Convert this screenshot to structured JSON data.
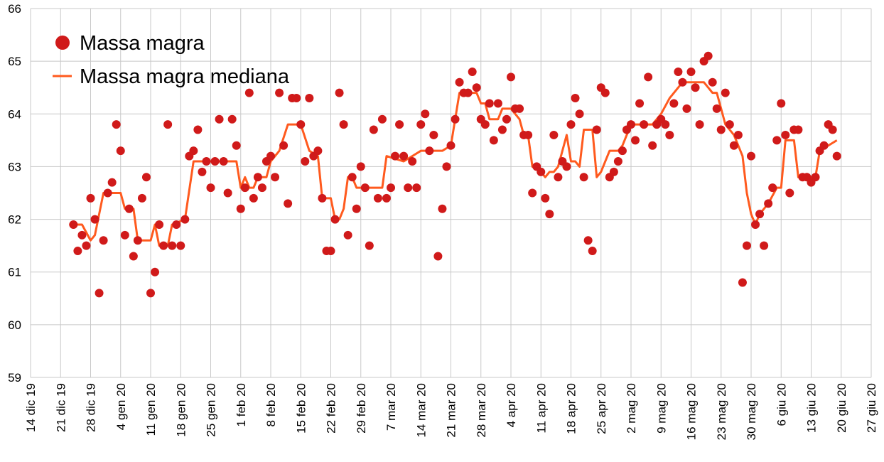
{
  "chart_data": {
    "type": "scatter+line",
    "title": "",
    "xlabel": "",
    "ylabel": "",
    "x_units": "days since 14 dic 19",
    "xlim": [
      0,
      196
    ],
    "ylim": [
      59,
      66
    ],
    "grid": true,
    "legend_placement": "top-left",
    "y_ticks": [
      "59",
      "60",
      "61",
      "62",
      "63",
      "64",
      "65",
      "66"
    ],
    "x_ticks": [
      "14 dic 19",
      "21 dic 19",
      "28 dic 19",
      "4 gen 20",
      "11 gen 20",
      "18 gen 20",
      "25 gen 20",
      "1 feb 20",
      "8 feb 20",
      "15 feb 20",
      "22 feb 20",
      "29 feb 20",
      "7 mar 20",
      "14 mar 20",
      "21 mar 20",
      "28 mar 20",
      "4 apr 20",
      "11 apr 20",
      "18 apr 20",
      "25 apr 20",
      "2 mag 20",
      "9 mag 20",
      "16 mag 20",
      "23 mag 20",
      "30 mag 20",
      "6 giu 20",
      "13 giu 20",
      "20 giu 20",
      "27 giu 20"
    ],
    "series": [
      {
        "name": "Massa magra",
        "kind": "points",
        "color": "#d01a1a",
        "points": [
          [
            10,
            61.9
          ],
          [
            11,
            61.4
          ],
          [
            12,
            61.7
          ],
          [
            13,
            61.5
          ],
          [
            14,
            62.4
          ],
          [
            15,
            62.0
          ],
          [
            16,
            60.6
          ],
          [
            17,
            61.6
          ],
          [
            18,
            62.5
          ],
          [
            19,
            62.7
          ],
          [
            20,
            63.8
          ],
          [
            21,
            63.3
          ],
          [
            22,
            61.7
          ],
          [
            23,
            62.2
          ],
          [
            24,
            61.3
          ],
          [
            25,
            61.6
          ],
          [
            26,
            62.4
          ],
          [
            27,
            62.8
          ],
          [
            28,
            60.6
          ],
          [
            29,
            61.0
          ],
          [
            30,
            61.9
          ],
          [
            31,
            61.5
          ],
          [
            32,
            63.8
          ],
          [
            33,
            61.5
          ],
          [
            34,
            61.9
          ],
          [
            35,
            61.5
          ],
          [
            36,
            62.0
          ],
          [
            37,
            63.2
          ],
          [
            38,
            63.3
          ],
          [
            39,
            63.7
          ],
          [
            40,
            62.9
          ],
          [
            41,
            63.1
          ],
          [
            42,
            62.6
          ],
          [
            43,
            63.1
          ],
          [
            44,
            63.9
          ],
          [
            45,
            63.1
          ],
          [
            46,
            62.5
          ],
          [
            47,
            63.9
          ],
          [
            48,
            63.4
          ],
          [
            49,
            62.2
          ],
          [
            50,
            62.6
          ],
          [
            51,
            64.4
          ],
          [
            52,
            62.4
          ],
          [
            53,
            62.8
          ],
          [
            54,
            62.6
          ],
          [
            55,
            63.1
          ],
          [
            56,
            63.2
          ],
          [
            57,
            62.8
          ],
          [
            58,
            64.4
          ],
          [
            59,
            63.4
          ],
          [
            60,
            62.3
          ],
          [
            61,
            64.3
          ],
          [
            62,
            64.3
          ],
          [
            63,
            63.8
          ],
          [
            64,
            63.1
          ],
          [
            65,
            64.3
          ],
          [
            66,
            63.2
          ],
          [
            67,
            63.3
          ],
          [
            68,
            62.4
          ],
          [
            69,
            61.4
          ],
          [
            70,
            61.4
          ],
          [
            71,
            62.0
          ],
          [
            72,
            64.4
          ],
          [
            73,
            63.8
          ],
          [
            74,
            61.7
          ],
          [
            75,
            62.8
          ],
          [
            76,
            62.2
          ],
          [
            77,
            63.0
          ],
          [
            78,
            62.6
          ],
          [
            79,
            61.5
          ],
          [
            80,
            63.7
          ],
          [
            81,
            62.4
          ],
          [
            82,
            63.9
          ],
          [
            83,
            62.4
          ],
          [
            84,
            62.6
          ],
          [
            85,
            63.2
          ],
          [
            86,
            63.8
          ],
          [
            87,
            63.2
          ],
          [
            88,
            62.6
          ],
          [
            89,
            63.1
          ],
          [
            90,
            62.6
          ],
          [
            91,
            63.8
          ],
          [
            92,
            64.0
          ],
          [
            93,
            63.3
          ],
          [
            94,
            63.6
          ],
          [
            95,
            61.3
          ],
          [
            96,
            62.2
          ],
          [
            97,
            63.0
          ],
          [
            98,
            63.4
          ],
          [
            99,
            63.9
          ],
          [
            100,
            64.6
          ],
          [
            101,
            64.4
          ],
          [
            102,
            64.4
          ],
          [
            103,
            64.8
          ],
          [
            104,
            64.5
          ],
          [
            105,
            63.9
          ],
          [
            106,
            63.8
          ],
          [
            107,
            64.2
          ],
          [
            108,
            63.5
          ],
          [
            109,
            64.2
          ],
          [
            110,
            63.7
          ],
          [
            111,
            63.9
          ],
          [
            112,
            64.7
          ],
          [
            113,
            64.1
          ],
          [
            114,
            64.1
          ],
          [
            115,
            63.6
          ],
          [
            116,
            63.6
          ],
          [
            117,
            62.5
          ],
          [
            118,
            63.0
          ],
          [
            119,
            62.9
          ],
          [
            120,
            62.4
          ],
          [
            121,
            62.1
          ],
          [
            122,
            63.6
          ],
          [
            123,
            62.8
          ],
          [
            124,
            63.1
          ],
          [
            125,
            63.0
          ],
          [
            126,
            63.8
          ],
          [
            127,
            64.3
          ],
          [
            128,
            64.0
          ],
          [
            129,
            62.8
          ],
          [
            130,
            61.6
          ],
          [
            131,
            61.4
          ],
          [
            132,
            63.7
          ],
          [
            133,
            64.5
          ],
          [
            134,
            64.4
          ],
          [
            135,
            62.8
          ],
          [
            136,
            62.9
          ],
          [
            137,
            63.1
          ],
          [
            138,
            63.3
          ],
          [
            139,
            63.7
          ],
          [
            140,
            63.8
          ],
          [
            141,
            63.5
          ],
          [
            142,
            64.2
          ],
          [
            143,
            63.8
          ],
          [
            144,
            64.7
          ],
          [
            145,
            63.4
          ],
          [
            146,
            63.8
          ],
          [
            147,
            63.9
          ],
          [
            148,
            63.8
          ],
          [
            149,
            63.6
          ],
          [
            150,
            64.2
          ],
          [
            151,
            64.8
          ],
          [
            152,
            64.6
          ],
          [
            153,
            64.1
          ],
          [
            154,
            64.8
          ],
          [
            155,
            64.5
          ],
          [
            156,
            63.8
          ],
          [
            157,
            65.0
          ],
          [
            158,
            65.1
          ],
          [
            159,
            64.6
          ],
          [
            160,
            64.1
          ],
          [
            161,
            63.7
          ],
          [
            162,
            64.4
          ],
          [
            163,
            63.8
          ],
          [
            164,
            63.4
          ],
          [
            165,
            63.6
          ],
          [
            166,
            60.8
          ],
          [
            167,
            61.5
          ],
          [
            168,
            63.2
          ],
          [
            169,
            61.9
          ],
          [
            170,
            62.1
          ],
          [
            171,
            61.5
          ],
          [
            172,
            62.3
          ],
          [
            173,
            62.6
          ],
          [
            174,
            63.5
          ],
          [
            175,
            64.2
          ],
          [
            176,
            63.6
          ],
          [
            177,
            62.5
          ],
          [
            178,
            63.7
          ],
          [
            179,
            63.7
          ],
          [
            180,
            62.8
          ],
          [
            181,
            62.8
          ],
          [
            182,
            62.7
          ],
          [
            183,
            62.8
          ],
          [
            184,
            63.3
          ],
          [
            185,
            63.4
          ],
          [
            186,
            63.8
          ],
          [
            187,
            63.7
          ],
          [
            188,
            63.2
          ]
        ]
      },
      {
        "name": "Massa magra mediana",
        "kind": "line",
        "color": "#ff5a1e",
        "points": [
          [
            9,
            61.9
          ],
          [
            12,
            61.9
          ],
          [
            14,
            61.6
          ],
          [
            15,
            61.7
          ],
          [
            17,
            62.5
          ],
          [
            21,
            62.5
          ],
          [
            22,
            62.2
          ],
          [
            24,
            62.2
          ],
          [
            25,
            61.6
          ],
          [
            28,
            61.6
          ],
          [
            29,
            61.9
          ],
          [
            30,
            61.5
          ],
          [
            32,
            61.5
          ],
          [
            33,
            61.9
          ],
          [
            36,
            62.0
          ],
          [
            38,
            63.1
          ],
          [
            48,
            63.1
          ],
          [
            49,
            62.6
          ],
          [
            50,
            62.8
          ],
          [
            51,
            62.6
          ],
          [
            52,
            62.6
          ],
          [
            53,
            62.8
          ],
          [
            55,
            62.8
          ],
          [
            56,
            63.1
          ],
          [
            58,
            63.3
          ],
          [
            60,
            63.8
          ],
          [
            63,
            63.8
          ],
          [
            65,
            63.3
          ],
          [
            67,
            63.2
          ],
          [
            68,
            62.4
          ],
          [
            70,
            62.4
          ],
          [
            71,
            62.0
          ],
          [
            72,
            62.0
          ],
          [
            73,
            62.2
          ],
          [
            74,
            62.8
          ],
          [
            75,
            62.8
          ],
          [
            76,
            62.6
          ],
          [
            82,
            62.6
          ],
          [
            83,
            63.2
          ],
          [
            87,
            63.1
          ],
          [
            89,
            63.2
          ],
          [
            91,
            63.3
          ],
          [
            96,
            63.3
          ],
          [
            98,
            63.4
          ],
          [
            100,
            64.4
          ],
          [
            104,
            64.4
          ],
          [
            105,
            64.2
          ],
          [
            106,
            64.2
          ],
          [
            107,
            63.9
          ],
          [
            109,
            63.9
          ],
          [
            110,
            64.1
          ],
          [
            112,
            64.1
          ],
          [
            114,
            63.9
          ],
          [
            115,
            63.6
          ],
          [
            116,
            63.6
          ],
          [
            117,
            63.0
          ],
          [
            119,
            62.9
          ],
          [
            120,
            62.8
          ],
          [
            121,
            62.9
          ],
          [
            122,
            62.9
          ],
          [
            123,
            63.0
          ],
          [
            125,
            63.6
          ],
          [
            126,
            63.1
          ],
          [
            127,
            63.1
          ],
          [
            128,
            63.0
          ],
          [
            129,
            63.7
          ],
          [
            131,
            63.7
          ],
          [
            132,
            62.8
          ],
          [
            133,
            62.9
          ],
          [
            135,
            63.3
          ],
          [
            137,
            63.3
          ],
          [
            138,
            63.4
          ],
          [
            140,
            63.8
          ],
          [
            145,
            63.8
          ],
          [
            147,
            64.0
          ],
          [
            149,
            64.3
          ],
          [
            152,
            64.6
          ],
          [
            157,
            64.6
          ],
          [
            159,
            64.4
          ],
          [
            160,
            64.4
          ],
          [
            162,
            63.8
          ],
          [
            164,
            63.6
          ],
          [
            166,
            63.2
          ],
          [
            167,
            62.5
          ],
          [
            168,
            62.1
          ],
          [
            169,
            61.9
          ],
          [
            170,
            62.1
          ],
          [
            172,
            62.3
          ],
          [
            174,
            62.6
          ],
          [
            175,
            62.6
          ],
          [
            176,
            63.5
          ],
          [
            178,
            63.5
          ],
          [
            179,
            62.8
          ],
          [
            182,
            62.8
          ],
          [
            182.5,
            62.7
          ],
          [
            183,
            62.8
          ],
          [
            184,
            63.3
          ],
          [
            186,
            63.4
          ],
          [
            188,
            63.5
          ]
        ]
      }
    ]
  }
}
